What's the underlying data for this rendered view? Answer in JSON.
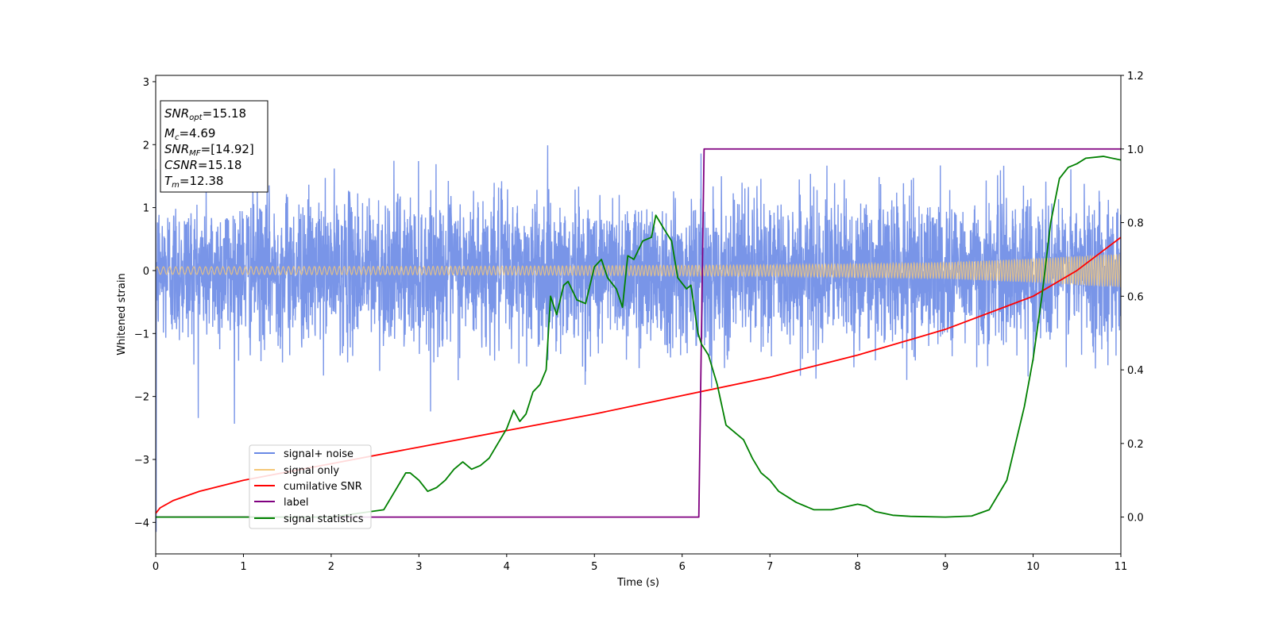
{
  "chart_data": {
    "type": "line",
    "xlabel": "Time (s)",
    "ylabel": "Whitened strain",
    "xlim": [
      0,
      11
    ],
    "ylim": [
      -4.5,
      3.1
    ],
    "y2lim": [
      -0.1,
      1.2
    ],
    "x_ticks": [
      0,
      1,
      2,
      3,
      4,
      5,
      6,
      7,
      8,
      9,
      10,
      11
    ],
    "y_ticks": [
      -4,
      -3,
      -2,
      -1,
      0,
      1,
      2,
      3
    ],
    "y2_ticks": [
      0.0,
      0.2,
      0.4,
      0.6,
      0.8,
      1.0,
      1.2
    ],
    "grid": false,
    "legend_position": "lower-left",
    "stats_box": {
      "lines": [
        {
          "sym": "SNR",
          "sub": "opt",
          "value": "=15.18"
        },
        {
          "sym": "M",
          "sub": "c",
          "value": "=4.69"
        },
        {
          "sym": "SNR",
          "sub": "MF",
          "value": "=[14.92]"
        },
        {
          "sym": "CSNR",
          "sub": "",
          "value": "=15.18"
        },
        {
          "sym": "T",
          "sub": "m",
          "value": "=12.38"
        }
      ]
    },
    "series": [
      {
        "name": "signal+ noise",
        "color": "#6a89e5",
        "axis": "left",
        "kind": "noise_band",
        "note_values": {
          "typical_range": [
            -1.6,
            1.7
          ],
          "extremes": [
            -4.15,
            2.78
          ]
        }
      },
      {
        "name": "signal only",
        "color": "#f5c878",
        "axis": "left",
        "kind": "chirp_envelope",
        "envelope": {
          "x": [
            0,
            4,
            7,
            9,
            10,
            11
          ],
          "amp": [
            0.06,
            0.07,
            0.09,
            0.13,
            0.19,
            0.27
          ]
        }
      },
      {
        "name": "cumilative SNR",
        "color": "#ff0000",
        "axis": "right",
        "x": [
          0,
          0.05,
          0.2,
          0.5,
          1,
          2,
          3,
          4,
          5,
          6,
          7,
          8,
          9,
          10,
          10.5,
          11
        ],
        "y": [
          0.01,
          0.025,
          0.045,
          0.07,
          0.1,
          0.145,
          0.19,
          0.235,
          0.28,
          0.33,
          0.38,
          0.44,
          0.51,
          0.6,
          0.67,
          0.76
        ]
      },
      {
        "name": "label",
        "color": "#800080",
        "axis": "right",
        "x": [
          0,
          6.19,
          6.25,
          11
        ],
        "y": [
          0,
          0,
          1,
          1
        ]
      },
      {
        "name": "signal statistics",
        "color": "#008000",
        "axis": "right",
        "x": [
          0,
          2.0,
          2.3,
          2.6,
          2.7,
          2.8,
          2.85,
          2.9,
          3.0,
          3.1,
          3.2,
          3.3,
          3.4,
          3.5,
          3.6,
          3.7,
          3.8,
          3.9,
          4.0,
          4.08,
          4.15,
          4.22,
          4.3,
          4.38,
          4.45,
          4.5,
          4.57,
          4.65,
          4.7,
          4.8,
          4.9,
          5.0,
          5.08,
          5.15,
          5.25,
          5.32,
          5.38,
          5.45,
          5.55,
          5.65,
          5.7,
          5.8,
          5.88,
          5.95,
          6.05,
          6.1,
          6.18,
          6.22,
          6.3,
          6.4,
          6.5,
          6.6,
          6.7,
          6.8,
          6.9,
          7.0,
          7.1,
          7.3,
          7.5,
          7.7,
          7.9,
          8.0,
          8.1,
          8.2,
          8.4,
          8.6,
          9.0,
          9.3,
          9.5,
          9.7,
          9.8,
          9.9,
          10.0,
          10.1,
          10.2,
          10.3,
          10.4,
          10.5,
          10.6,
          10.8,
          11.0
        ],
        "y": [
          0.0,
          0.0,
          0.01,
          0.02,
          0.06,
          0.1,
          0.12,
          0.12,
          0.1,
          0.07,
          0.08,
          0.1,
          0.13,
          0.15,
          0.13,
          0.14,
          0.16,
          0.2,
          0.24,
          0.29,
          0.26,
          0.28,
          0.34,
          0.36,
          0.4,
          0.6,
          0.55,
          0.63,
          0.64,
          0.59,
          0.58,
          0.68,
          0.7,
          0.65,
          0.62,
          0.57,
          0.71,
          0.7,
          0.75,
          0.76,
          0.82,
          0.78,
          0.75,
          0.65,
          0.62,
          0.63,
          0.5,
          0.47,
          0.44,
          0.36,
          0.25,
          0.23,
          0.21,
          0.16,
          0.12,
          0.1,
          0.07,
          0.04,
          0.02,
          0.02,
          0.03,
          0.035,
          0.03,
          0.015,
          0.005,
          0.002,
          0.0,
          0.003,
          0.02,
          0.1,
          0.2,
          0.3,
          0.43,
          0.6,
          0.8,
          0.92,
          0.95,
          0.96,
          0.975,
          0.98,
          0.97
        ]
      }
    ]
  }
}
